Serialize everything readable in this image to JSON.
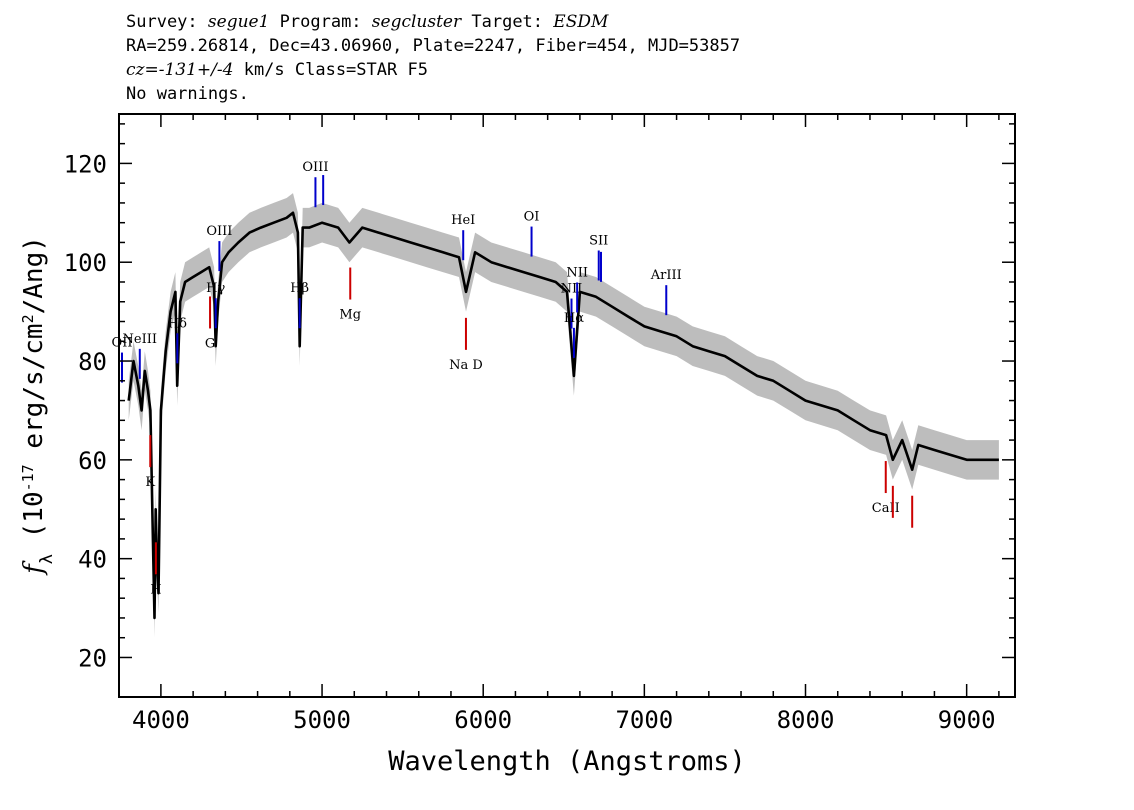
{
  "header": {
    "survey_label": "Survey:",
    "survey": "segue1",
    "program_label": "Program:",
    "program": "segcluster",
    "target_label": "Target:",
    "target": "ESDM",
    "line2": "RA=259.26814, Dec=43.06960, Plate=2247, Fiber=454, MJD=53857",
    "cz_label": "cz=",
    "cz_value": "-131+/-4",
    "cz_rest": " km/s Class=STAR F5",
    "warnings": "No warnings."
  },
  "colors": {
    "flux": "#000000",
    "error_band": "#bdbdbd",
    "emission_lines": "#0000cc",
    "absorption_lines": "#cc0000",
    "axes": "#000000"
  },
  "chart_data": {
    "type": "line",
    "xlabel": "Wavelength (Angstroms)",
    "ylabel": "f_λ (10^-17 erg/s/cm^2/Ang)",
    "xlim": [
      3740,
      9300
    ],
    "ylim": [
      12,
      130
    ],
    "xticks": [
      "4000",
      "5000",
      "6000",
      "7000",
      "8000",
      "9000"
    ],
    "yticks": [
      "20",
      "40",
      "60",
      "80",
      "100",
      "120"
    ],
    "grid": false,
    "series": [
      {
        "x": [
          3800,
          3830,
          3860,
          3880,
          3900,
          3920,
          3935,
          3950,
          3960,
          3968,
          3975,
          3985,
          4000,
          4030,
          4060,
          4090,
          4101,
          4120,
          4150,
          4200,
          4250,
          4300,
          4330,
          4340,
          4355,
          4380,
          4420,
          4480,
          4550,
          4620,
          4700,
          4780,
          4820,
          4850,
          4861,
          4880,
          4920,
          5000,
          5100,
          5170,
          5250,
          5350,
          5450,
          5550,
          5650,
          5750,
          5850,
          5893,
          5950,
          6050,
          6150,
          6250,
          6350,
          6450,
          6520,
          6563,
          6600,
          6700,
          6800,
          6900,
          7000,
          7100,
          7200,
          7300,
          7400,
          7500,
          7600,
          7700,
          7800,
          7900,
          8000,
          8100,
          8200,
          8300,
          8400,
          8500,
          8542,
          8600,
          8662,
          8700,
          8800,
          8900,
          9000,
          9100,
          9200
        ],
        "y": [
          72,
          80,
          75,
          70,
          78,
          74,
          70,
          45,
          28,
          50,
          40,
          33,
          70,
          82,
          90,
          94,
          75,
          92,
          96,
          97,
          98,
          99,
          95,
          83,
          92,
          100,
          102,
          104,
          106,
          107,
          108,
          109,
          110,
          106,
          83,
          107,
          107,
          108,
          107,
          104,
          107,
          106,
          105,
          104,
          103,
          102,
          101,
          94,
          102,
          100,
          99,
          98,
          97,
          96,
          94,
          77,
          94,
          93,
          91,
          89,
          87,
          86,
          85,
          83,
          82,
          81,
          79,
          77,
          76,
          74,
          72,
          71,
          70,
          68,
          66,
          65,
          60,
          64,
          58,
          63,
          62,
          61,
          60,
          60,
          60
        ],
        "error_band_halfwidth": 4
      }
    ],
    "line_markers": [
      {
        "label": "OII",
        "wavelength": 3727,
        "kind": "emission"
      },
      {
        "label": "NeIII",
        "wavelength": 3869,
        "kind": "emission"
      },
      {
        "label": "Hδ",
        "wavelength": 4102,
        "kind": "emission"
      },
      {
        "label": "Hγ",
        "wavelength": 4340,
        "kind": "emission"
      },
      {
        "label": "OIII",
        "wavelength": 4363,
        "kind": "emission"
      },
      {
        "label": "Hβ",
        "wavelength": 4861,
        "kind": "emission"
      },
      {
        "label": "OIII",
        "wavelength": 4959,
        "kind": "emission"
      },
      {
        "label": "",
        "wavelength": 5007,
        "kind": "emission"
      },
      {
        "label": "HeI",
        "wavelength": 5876,
        "kind": "emission"
      },
      {
        "label": "OI",
        "wavelength": 6300,
        "kind": "emission"
      },
      {
        "label": "NII",
        "wavelength": 6548,
        "kind": "emission"
      },
      {
        "label": "Hα",
        "wavelength": 6563,
        "kind": "emission"
      },
      {
        "label": "NII",
        "wavelength": 6583,
        "kind": "emission"
      },
      {
        "label": "SII",
        "wavelength": 6717,
        "kind": "emission"
      },
      {
        "label": "",
        "wavelength": 6731,
        "kind": "emission"
      },
      {
        "label": "ArIII",
        "wavelength": 7136,
        "kind": "emission"
      },
      {
        "label": "K",
        "wavelength": 3934,
        "kind": "absorption"
      },
      {
        "label": "H",
        "wavelength": 3969,
        "kind": "absorption"
      },
      {
        "label": "G",
        "wavelength": 4305,
        "kind": "absorption"
      },
      {
        "label": "Mg",
        "wavelength": 5175,
        "kind": "absorption"
      },
      {
        "label": "Na D",
        "wavelength": 5893,
        "kind": "absorption"
      },
      {
        "label": "CaII",
        "wavelength": 8498,
        "kind": "absorption"
      },
      {
        "label": "",
        "wavelength": 8542,
        "kind": "absorption"
      },
      {
        "label": "",
        "wavelength": 8662,
        "kind": "absorption"
      }
    ]
  }
}
